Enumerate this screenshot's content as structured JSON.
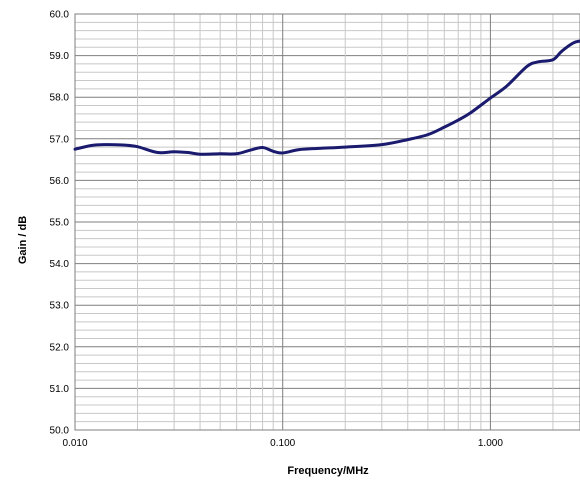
{
  "chart_data": {
    "type": "line",
    "title": "",
    "xlabel": "Frequency/MHz",
    "ylabel": "Gain / dB",
    "x_scale": "log",
    "xlim": [
      0.01,
      2.7
    ],
    "ylim": [
      50.0,
      60.0
    ],
    "x_ticks": [
      {
        "value": 0.01,
        "label": "0.010"
      },
      {
        "value": 0.1,
        "label": "0.100"
      },
      {
        "value": 1.0,
        "label": "1.000"
      }
    ],
    "y_ticks": [
      {
        "value": 50,
        "label": "50.0"
      },
      {
        "value": 51,
        "label": "51.0"
      },
      {
        "value": 52,
        "label": "52.0"
      },
      {
        "value": 53,
        "label": "53.0"
      },
      {
        "value": 54,
        "label": "54.0"
      },
      {
        "value": 55,
        "label": "55.0"
      },
      {
        "value": 56,
        "label": "56.0"
      },
      {
        "value": 57,
        "label": "57.0"
      },
      {
        "value": 58,
        "label": "58.0"
      },
      {
        "value": 59,
        "label": "59.0"
      },
      {
        "value": 60,
        "label": "60.0"
      }
    ],
    "grid": true,
    "legend": "none",
    "colors": {
      "series": "#1a1a6e",
      "major_grid": "#7f7f7f",
      "minor_grid": "#c8c8c8",
      "axis": "#7f7f7f"
    },
    "series": [
      {
        "x": [
          0.01,
          0.012,
          0.014,
          0.017,
          0.02,
          0.025,
          0.03,
          0.035,
          0.04,
          0.05,
          0.06,
          0.07,
          0.08,
          0.09,
          0.1,
          0.12,
          0.15,
          0.2,
          0.3,
          0.4,
          0.5,
          0.6,
          0.7,
          0.8,
          1.0,
          1.2,
          1.5,
          1.7,
          2.0,
          2.2,
          2.5,
          2.7
        ],
        "y": [
          56.75,
          56.84,
          56.86,
          56.85,
          56.81,
          56.67,
          56.69,
          56.67,
          56.63,
          56.64,
          56.64,
          56.73,
          56.79,
          56.7,
          56.66,
          56.74,
          56.77,
          56.8,
          56.86,
          56.98,
          57.1,
          57.28,
          57.45,
          57.62,
          57.98,
          58.27,
          58.74,
          58.85,
          58.9,
          59.1,
          59.3,
          59.35
        ]
      }
    ]
  }
}
